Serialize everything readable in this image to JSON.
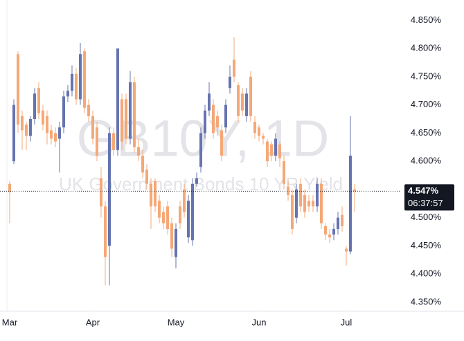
{
  "chart_data": {
    "type": "candlestick",
    "watermark": "GB10Y, 1D",
    "watermark_subtitle": "UK Government Bonds 10 YR Yield",
    "up_color": "#6573b0",
    "down_color": "#f5a877",
    "open": [
      4.56,
      4.6,
      4.79,
      4.68,
      4.665,
      4.645,
      4.675,
      4.73,
      4.69,
      4.68,
      4.655,
      4.65,
      4.64,
      4.66,
      4.715,
      4.725,
      4.755,
      4.71,
      4.795,
      4.7,
      4.68,
      4.66,
      4.57,
      4.52,
      4.45,
      4.65,
      4.62,
      4.71,
      4.71,
      4.64,
      4.74,
      4.625,
      4.61,
      4.585,
      4.56,
      4.565,
      4.53,
      4.51,
      4.52,
      4.49,
      4.43,
      4.52,
      4.55,
      4.465,
      4.46,
      4.56,
      4.59,
      4.65,
      4.69,
      4.7,
      4.68,
      4.655,
      4.66,
      4.73,
      4.78,
      4.735,
      4.72,
      4.68,
      4.75,
      4.67,
      4.66,
      4.645,
      4.635,
      4.63,
      4.61,
      4.63,
      4.6,
      4.555,
      4.54,
      4.5,
      4.56,
      4.54,
      4.53,
      4.53,
      4.52,
      4.56,
      4.485,
      4.47,
      4.47,
      4.48,
      4.505,
      4.445,
      4.44,
      4.55
    ],
    "high": [
      4.565,
      4.71,
      4.795,
      4.69,
      4.67,
      4.68,
      4.73,
      4.74,
      4.7,
      4.69,
      4.665,
      4.66,
      4.67,
      4.725,
      4.735,
      4.77,
      4.765,
      4.81,
      4.8,
      4.71,
      4.69,
      4.67,
      4.59,
      4.53,
      4.66,
      4.66,
      4.8,
      4.72,
      4.72,
      4.76,
      4.75,
      4.64,
      4.62,
      4.595,
      4.57,
      4.57,
      4.54,
      4.52,
      4.53,
      4.5,
      4.49,
      4.53,
      4.56,
      4.54,
      4.57,
      4.58,
      4.66,
      4.7,
      4.74,
      4.71,
      4.69,
      4.665,
      4.71,
      4.77,
      4.82,
      4.74,
      4.73,
      4.73,
      4.76,
      4.68,
      4.665,
      4.65,
      4.64,
      4.635,
      4.65,
      4.635,
      4.61,
      4.565,
      4.55,
      4.56,
      4.57,
      4.55,
      4.54,
      4.54,
      4.57,
      4.57,
      4.49,
      4.48,
      4.49,
      4.51,
      4.52,
      4.45,
      4.68,
      4.56
    ],
    "low": [
      4.49,
      4.595,
      4.65,
      4.62,
      4.62,
      4.635,
      4.665,
      4.675,
      4.655,
      4.63,
      4.63,
      4.625,
      4.58,
      4.65,
      4.705,
      4.715,
      4.7,
      4.7,
      4.685,
      4.67,
      4.63,
      4.6,
      4.5,
      4.38,
      4.38,
      4.61,
      4.61,
      4.62,
      4.63,
      4.63,
      4.615,
      4.6,
      4.57,
      4.55,
      4.48,
      4.51,
      4.49,
      4.48,
      4.47,
      4.43,
      4.41,
      4.48,
      4.5,
      4.455,
      4.45,
      4.555,
      4.58,
      4.64,
      4.68,
      4.64,
      4.645,
      4.6,
      4.65,
      4.72,
      4.74,
      4.67,
      4.68,
      4.67,
      4.67,
      4.64,
      4.635,
      4.63,
      4.59,
      4.6,
      4.6,
      4.59,
      4.55,
      4.53,
      4.47,
      4.49,
      4.51,
      4.5,
      4.51,
      4.51,
      4.51,
      4.48,
      4.46,
      4.455,
      4.46,
      4.47,
      4.475,
      4.415,
      4.435,
      4.51
    ],
    "close": [
      4.545,
      4.7,
      4.665,
      4.655,
      4.645,
      4.675,
      4.72,
      4.685,
      4.665,
      4.65,
      4.64,
      4.635,
      4.66,
      4.715,
      4.725,
      4.755,
      4.71,
      4.79,
      4.695,
      4.68,
      4.64,
      4.61,
      4.52,
      4.43,
      4.65,
      4.62,
      4.8,
      4.635,
      4.64,
      4.74,
      4.625,
      4.61,
      4.58,
      4.56,
      4.52,
      4.52,
      4.5,
      4.49,
      4.48,
      4.445,
      4.48,
      4.49,
      4.51,
      4.53,
      4.56,
      4.57,
      4.65,
      4.69,
      4.72,
      4.65,
      4.66,
      4.61,
      4.7,
      4.75,
      4.75,
      4.68,
      4.69,
      4.72,
      4.68,
      4.65,
      4.645,
      4.64,
      4.6,
      4.61,
      4.64,
      4.605,
      4.56,
      4.54,
      4.48,
      4.55,
      4.52,
      4.51,
      4.52,
      4.52,
      4.56,
      4.49,
      4.47,
      4.465,
      4.48,
      4.5,
      4.485,
      4.44,
      4.61,
      4.547
    ],
    "xlim": [
      -2.33,
      94
    ],
    "xticks": [
      {
        "value": 0,
        "label": "Mar"
      },
      {
        "value": 20,
        "label": "Apr"
      },
      {
        "value": 40,
        "label": "May"
      },
      {
        "value": 60,
        "label": "Jun"
      },
      {
        "value": 81,
        "label": "Jul"
      }
    ],
    "ylim": [
      4.334,
      4.886
    ],
    "yticks": [
      {
        "value": 4.35,
        "label": "4.350%"
      },
      {
        "value": 4.4,
        "label": "4.400%"
      },
      {
        "value": 4.45,
        "label": "4.450%"
      },
      {
        "value": 4.5,
        "label": "4.500%"
      },
      {
        "value": 4.55,
        "label": "4.550%"
      },
      {
        "value": 4.6,
        "label": "4.600%"
      },
      {
        "value": 4.65,
        "label": "4.650%"
      },
      {
        "value": 4.7,
        "label": "4.700%"
      },
      {
        "value": 4.75,
        "label": "4.750%"
      },
      {
        "value": 4.8,
        "label": "4.800%"
      },
      {
        "value": 4.85,
        "label": "4.850%"
      }
    ],
    "last_price": {
      "value": 4.547,
      "label": "4.547%"
    },
    "countdown": "06:37:57"
  }
}
